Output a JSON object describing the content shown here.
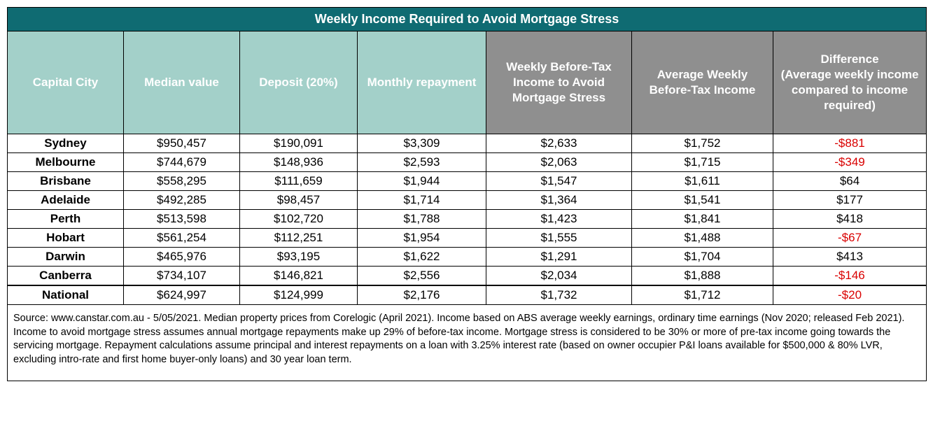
{
  "title": "Weekly Income Required to Avoid Mortgage Stress",
  "colors": {
    "title_bg": "#0f6b72",
    "teal_header": "#a3d0c9",
    "grey_header": "#8f8f8f",
    "header_text": "#ffffff",
    "negative": "#d90000",
    "cell_bg": "#ffffff",
    "border": "#000000"
  },
  "columns": [
    {
      "key": "city",
      "label": "Capital City",
      "class": "teal"
    },
    {
      "key": "median",
      "label": "Median value",
      "class": "teal"
    },
    {
      "key": "deposit",
      "label": "Deposit (20%)",
      "class": "teal"
    },
    {
      "key": "monthly",
      "label": "Monthly repayment",
      "class": "teal"
    },
    {
      "key": "weekly",
      "label": "Weekly Before-Tax Income to Avoid Mortgage Stress",
      "class": "grey"
    },
    {
      "key": "avg",
      "label": "Average Weekly Before-Tax Income",
      "class": "grey"
    },
    {
      "key": "diff",
      "label": "Difference\n(Average weekly income compared to income required)",
      "class": "grey"
    }
  ],
  "rows": [
    {
      "city": "Sydney",
      "median": "$950,457",
      "deposit": "$190,091",
      "monthly": "$3,309",
      "weekly": "$2,633",
      "avg": "$1,752",
      "diff": "-$881",
      "diff_neg": true,
      "national": false
    },
    {
      "city": "Melbourne",
      "median": "$744,679",
      "deposit": "$148,936",
      "monthly": "$2,593",
      "weekly": "$2,063",
      "avg": "$1,715",
      "diff": "-$349",
      "diff_neg": true,
      "national": false
    },
    {
      "city": "Brisbane",
      "median": "$558,295",
      "deposit": "$111,659",
      "monthly": "$1,944",
      "weekly": "$1,547",
      "avg": "$1,611",
      "diff": "$64",
      "diff_neg": false,
      "national": false
    },
    {
      "city": "Adelaide",
      "median": "$492,285",
      "deposit": "$98,457",
      "monthly": "$1,714",
      "weekly": "$1,364",
      "avg": "$1,541",
      "diff": "$177",
      "diff_neg": false,
      "national": false
    },
    {
      "city": "Perth",
      "median": "$513,598",
      "deposit": "$102,720",
      "monthly": "$1,788",
      "weekly": "$1,423",
      "avg": "$1,841",
      "diff": "$418",
      "diff_neg": false,
      "national": false
    },
    {
      "city": "Hobart",
      "median": "$561,254",
      "deposit": "$112,251",
      "monthly": "$1,954",
      "weekly": "$1,555",
      "avg": "$1,488",
      "diff": "-$67",
      "diff_neg": true,
      "national": false
    },
    {
      "city": "Darwin",
      "median": "$465,976",
      "deposit": "$93,195",
      "monthly": "$1,622",
      "weekly": "$1,291",
      "avg": "$1,704",
      "diff": "$413",
      "diff_neg": false,
      "national": false
    },
    {
      "city": "Canberra",
      "median": "$734,107",
      "deposit": "$146,821",
      "monthly": "$2,556",
      "weekly": "$2,034",
      "avg": "$1,888",
      "diff": "-$146",
      "diff_neg": true,
      "national": false
    },
    {
      "city": "National",
      "median": "$624,997",
      "deposit": "$124,999",
      "monthly": "$2,176",
      "weekly": "$1,732",
      "avg": "$1,712",
      "diff": "-$20",
      "diff_neg": true,
      "national": true
    }
  ],
  "footer": "Source: www.canstar.com.au - 5/05/2021. Median property prices from Corelogic (April 2021). Income based on ABS average weekly earnings, ordinary time earnings (Nov 2020; released Feb 2021). Income to avoid mortgage stress assumes annual mortgage repayments make up 29% of before-tax income. Mortgage stress is considered to be 30% or more of pre-tax income going towards the servicing mortgage. Repayment calculations assume principal and interest repayments on a loan with 3.25% interest rate (based on owner occupier P&I loans available for $500,000 & 80% LVR, excluding intro-rate and first home buyer-only loans) and 30 year loan term."
}
